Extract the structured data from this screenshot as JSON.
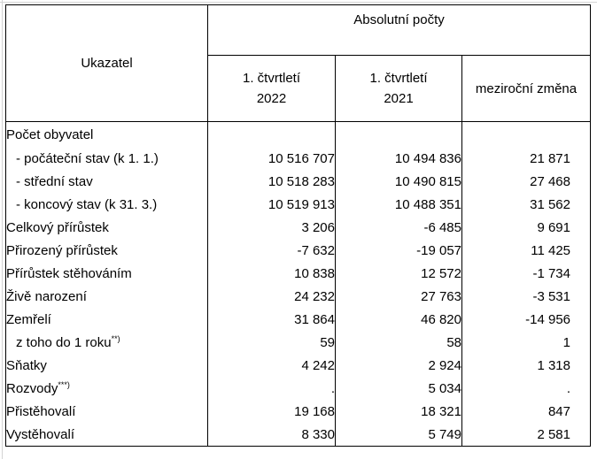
{
  "table": {
    "row_header": "Ukazatel",
    "group_header": "Absolutní počty",
    "columns": [
      {
        "line1": "1. čtvrtletí",
        "line2": "2022"
      },
      {
        "line1": "1. čtvrtletí",
        "line2": "2021"
      },
      {
        "line1": "meziroční změna",
        "line2": ""
      }
    ],
    "rows": [
      {
        "label": "Počet obyvatel",
        "sup": "",
        "indent": false,
        "values": [
          "",
          "",
          ""
        ]
      },
      {
        "label": "- počáteční stav (k 1. 1.)",
        "sup": "",
        "indent": true,
        "values": [
          "10 516 707",
          "10 494 836",
          "21 871"
        ]
      },
      {
        "label": "- střední stav",
        "sup": "",
        "indent": true,
        "values": [
          "10 518 283",
          "10 490 815",
          "27 468"
        ]
      },
      {
        "label": "- koncový stav (k 31. 3.)",
        "sup": "",
        "indent": true,
        "values": [
          "10 519 913",
          "10 488 351",
          "31 562"
        ]
      },
      {
        "label": "Celkový přírůstek",
        "sup": "",
        "indent": false,
        "values": [
          "3 206",
          "-6 485",
          "9 691"
        ]
      },
      {
        "label": "Přirozený přírůstek",
        "sup": "",
        "indent": false,
        "values": [
          "-7 632",
          "-19 057",
          "11 425"
        ]
      },
      {
        "label": "Přírůstek stěhováním",
        "sup": "",
        "indent": false,
        "values": [
          "10 838",
          "12 572",
          "-1 734"
        ]
      },
      {
        "label": "Živě narození",
        "sup": "",
        "indent": false,
        "values": [
          "24 232",
          "27 763",
          "-3 531"
        ]
      },
      {
        "label": "Zemřelí",
        "sup": "",
        "indent": false,
        "values": [
          "31 864",
          "46 820",
          "-14 956"
        ]
      },
      {
        "label": "z toho do 1 roku",
        "sup": "**)",
        "indent": true,
        "values": [
          "59",
          "58",
          "1"
        ]
      },
      {
        "label": "Sňatky",
        "sup": "",
        "indent": false,
        "values": [
          "4 242",
          "2 924",
          "1 318"
        ]
      },
      {
        "label": "Rozvody",
        "sup": "***)",
        "indent": false,
        "values": [
          ".",
          "5 034",
          "."
        ]
      },
      {
        "label": "Přistěhovalí",
        "sup": "",
        "indent": false,
        "values": [
          "19 168",
          "18 321",
          "847"
        ]
      },
      {
        "label": "Vystěhovalí",
        "sup": "",
        "indent": false,
        "values": [
          "8 330",
          "5 749",
          "2 581"
        ]
      }
    ]
  }
}
